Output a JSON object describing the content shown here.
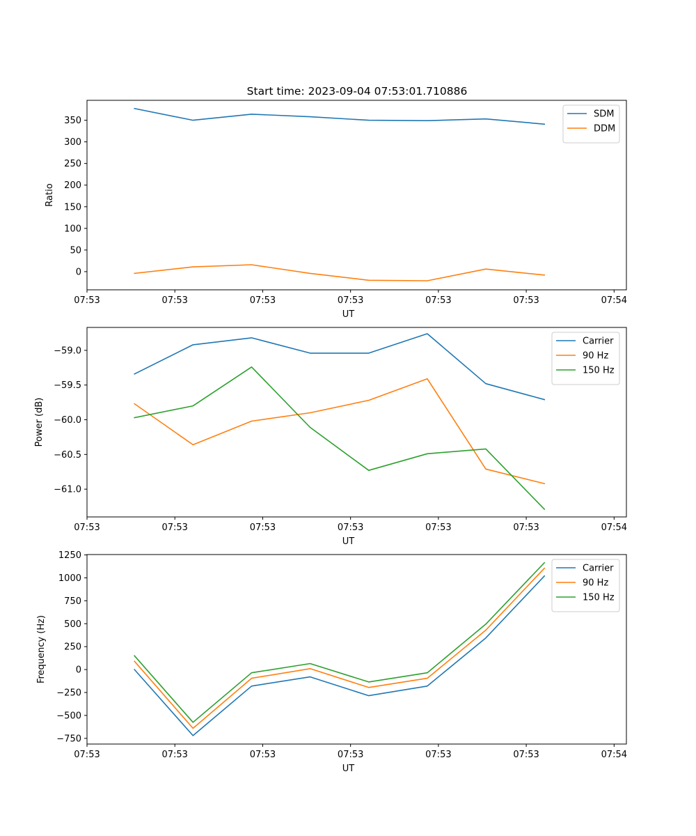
{
  "figure": {
    "title": "Start time: 2023-09-04 07:53:01.710886"
  },
  "colors": {
    "blue": "#1f77b4",
    "orange": "#ff7f0e",
    "green": "#2ca02c"
  },
  "chart_data": [
    {
      "type": "line",
      "xlabel": "UT",
      "ylabel": "Ratio",
      "x": [
        1,
        2,
        3,
        4,
        5,
        6,
        7,
        8
      ],
      "xlim": [
        0.19,
        9.4
      ],
      "x_ticks": [
        0.19,
        1.69,
        3.19,
        4.69,
        6.19,
        7.69,
        9.19
      ],
      "x_tick_labels": [
        "07:53",
        "07:53",
        "07:53",
        "07:53",
        "07:53",
        "07:53",
        "07:54"
      ],
      "ylim": [
        -42,
        396
      ],
      "y_ticks": [
        0,
        50,
        100,
        150,
        200,
        250,
        300,
        350
      ],
      "y_tick_labels": [
        "0",
        "50",
        "100",
        "150",
        "200",
        "250",
        "300",
        "350"
      ],
      "legend": "top-right",
      "series": [
        {
          "name": "SDM",
          "color": "#1f77b4",
          "values": [
            377,
            350,
            364,
            358,
            350,
            349,
            353,
            341
          ]
        },
        {
          "name": "DDM",
          "color": "#ff7f0e",
          "values": [
            -4,
            11,
            16,
            -4,
            -20,
            -21,
            6,
            -8
          ]
        }
      ]
    },
    {
      "type": "line",
      "xlabel": "UT",
      "ylabel": "Power (dB)",
      "x": [
        1,
        2,
        3,
        4,
        5,
        6,
        7,
        8
      ],
      "xlim": [
        0.19,
        9.4
      ],
      "x_ticks": [
        0.19,
        1.69,
        3.19,
        4.69,
        6.19,
        7.69,
        9.19
      ],
      "x_tick_labels": [
        "07:53",
        "07:53",
        "07:53",
        "07:53",
        "07:53",
        "07:53",
        "07:54"
      ],
      "ylim": [
        -61.4,
        -58.67
      ],
      "y_ticks": [
        -59.0,
        -59.5,
        -60.0,
        -60.5,
        -61.0
      ],
      "y_tick_labels": [
        "−59.0",
        "−59.5",
        "−60.0",
        "−60.5",
        "−61.0"
      ],
      "legend": "top-right",
      "series": [
        {
          "name": "Carrier",
          "color": "#1f77b4",
          "values": [
            -59.34,
            -58.92,
            -58.82,
            -59.04,
            -59.04,
            -58.76,
            -59.48,
            -59.71
          ]
        },
        {
          "name": "90 Hz",
          "color": "#ff7f0e",
          "values": [
            -59.77,
            -60.36,
            -60.02,
            -59.9,
            -59.72,
            -59.41,
            -60.71,
            -60.92
          ]
        },
        {
          "name": "150 Hz",
          "color": "#2ca02c",
          "values": [
            -59.97,
            -59.8,
            -59.24,
            -60.11,
            -60.73,
            -60.49,
            -60.42,
            -61.29
          ]
        }
      ]
    },
    {
      "type": "line",
      "xlabel": "UT",
      "ylabel": "Frequency (Hz)",
      "x": [
        1,
        2,
        3,
        4,
        5,
        6,
        7,
        8
      ],
      "xlim": [
        0.19,
        9.4
      ],
      "x_ticks": [
        0.19,
        1.69,
        3.19,
        4.69,
        6.19,
        7.69,
        9.19
      ],
      "x_tick_labels": [
        "07:53",
        "07:53",
        "07:53",
        "07:53",
        "07:53",
        "07:53",
        "07:54"
      ],
      "ylim": [
        -812,
        1254
      ],
      "y_ticks": [
        1250,
        1000,
        750,
        500,
        250,
        0,
        -250,
        -500,
        -750
      ],
      "y_tick_labels": [
        "1250",
        "1000",
        "750",
        "500",
        "250",
        "0",
        "−250",
        "−500",
        "−750"
      ],
      "legend": "top-right",
      "series": [
        {
          "name": "Carrier",
          "color": "#1f77b4",
          "values": [
            0,
            -720,
            -180,
            -80,
            -285,
            -180,
            345,
            1020
          ]
        },
        {
          "name": "90 Hz",
          "color": "#ff7f0e",
          "values": [
            90,
            -640,
            -95,
            10,
            -195,
            -95,
            430,
            1105
          ]
        },
        {
          "name": "150 Hz",
          "color": "#2ca02c",
          "values": [
            150,
            -575,
            -35,
            65,
            -135,
            -35,
            495,
            1165
          ]
        }
      ]
    }
  ]
}
